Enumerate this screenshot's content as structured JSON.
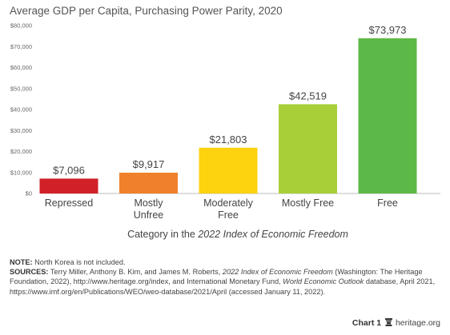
{
  "chart_data": {
    "type": "bar",
    "title": "Average GDP per Capita, Purchasing Power Parity, 2020",
    "xlabel_prefix": "Category in the ",
    "xlabel_italic": "2022 Index of Economic Freedom",
    "ylabel": "",
    "ylim": [
      0,
      80000
    ],
    "yticks": [
      0,
      10000,
      20000,
      30000,
      40000,
      50000,
      60000,
      70000,
      80000
    ],
    "ytick_labels": [
      "$0",
      "$10,000",
      "$20,000",
      "$30,000",
      "$40,000",
      "$50,000",
      "$60,000",
      "$70,000",
      "$80,000"
    ],
    "grid": false,
    "categories": [
      [
        "Repressed"
      ],
      [
        "Mostly",
        "Unfree"
      ],
      [
        "Moderately",
        "Free"
      ],
      [
        "Mostly Free"
      ],
      [
        "Free"
      ]
    ],
    "values": [
      7096,
      9917,
      21803,
      42519,
      73973
    ],
    "value_labels": [
      "$7,096",
      "$9,917",
      "$21,803",
      "$42,519",
      "$73,973"
    ],
    "colors": [
      "#d12027",
      "#f0802b",
      "#fdd20e",
      "#a9cf38",
      "#5cb947"
    ]
  },
  "note": {
    "note_label": "NOTE:",
    "note_text": " North Korea is not included.",
    "sources_label": "SOURCES:",
    "src_1": " Terry Miller, Anthony B. Kim, and James M. Roberts, ",
    "src_2_italic": "2022 Index of Economic Freedom",
    "src_3": " (Washington: The Heritage Foundation, 2022), http://www.heritage.org/index, and International Monetary Fund, ",
    "src_4_italic": "World Economic Outlook",
    "src_5": " database, April 2021, https://www.imf.org/en/Publications/WEO/weo-database/2021/April (accessed January 11, 2022)."
  },
  "footer": {
    "chart_label": "Chart 1",
    "icon": "heritage-bell-icon",
    "site": "heritage.org"
  }
}
